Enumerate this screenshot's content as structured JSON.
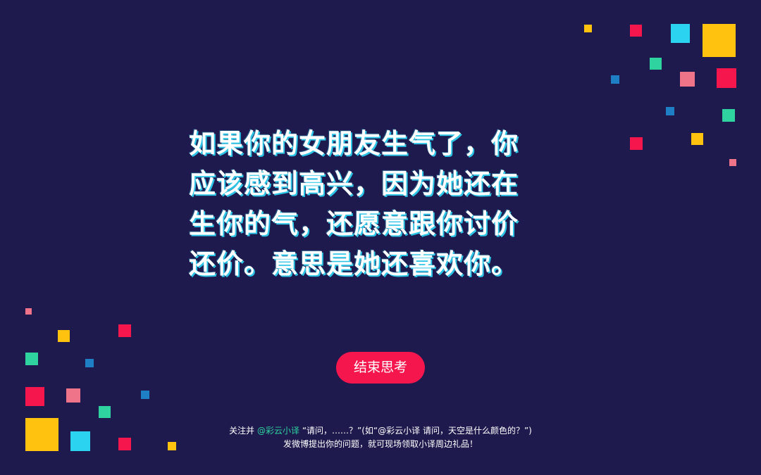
{
  "slide": {
    "quote_lines": [
      "如果你的女朋友生气了，你",
      "应该感到高兴，因为她还在",
      "生你的气，还愿意跟你讨价",
      "还价。意思是她还喜欢你。"
    ],
    "end_button_label": "结束思考"
  },
  "footer": {
    "prefix": "关注并",
    "handle": "@彩云小译",
    "line1_rest": "“请问，……？”(如“@彩云小译 请问，天空是什么颜色的？”)",
    "line2": "发微博提出你的问题，就可现场领取小译周边礼品！"
  },
  "colors": {
    "background": "#1e1a4d",
    "accent_red": "#f5164e",
    "accent_teal": "#2ed3a0",
    "accent_cyan": "#2bc4e6",
    "accent_yellow": "#ffc20e",
    "accent_pink": "#f07489",
    "accent_blue": "#1f7fc4"
  }
}
